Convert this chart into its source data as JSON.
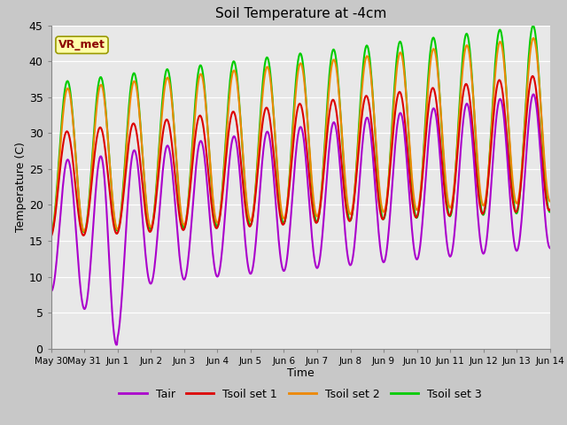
{
  "title": "Soil Temperature at -4cm",
  "xlabel": "Time",
  "ylabel": "Temperature (C)",
  "ylim": [
    0,
    45
  ],
  "xlim_days": [
    0,
    15
  ],
  "annotation_text": "VR_met",
  "annotation_color": "#8B0000",
  "annotation_bg": "#FFFFAA",
  "grid_color": "#ffffff",
  "fig_bg_color": "#c8c8c8",
  "plot_bg": "#e8e8e8",
  "line_colors": {
    "Tair": "#aa00cc",
    "Tsoil1": "#dd0000",
    "Tsoil2": "#ee8800",
    "Tsoil3": "#00cc00"
  },
  "legend_labels": [
    "Tair",
    "Tsoil set 1",
    "Tsoil set 2",
    "Tsoil set 3"
  ],
  "tick_labels": [
    "May 30",
    "May 31",
    "Jun 1",
    "Jun 2",
    "Jun 3",
    "Jun 4",
    "Jun 5",
    "Jun 6",
    "Jun 7",
    "Jun 8",
    "Jun 9",
    "Jun 10",
    "Jun 11",
    "Jun 12",
    "Jun 13",
    "Jun 14"
  ],
  "tick_positions": [
    0,
    1,
    2,
    3,
    4,
    5,
    6,
    7,
    8,
    9,
    10,
    11,
    12,
    13,
    14,
    15
  ]
}
